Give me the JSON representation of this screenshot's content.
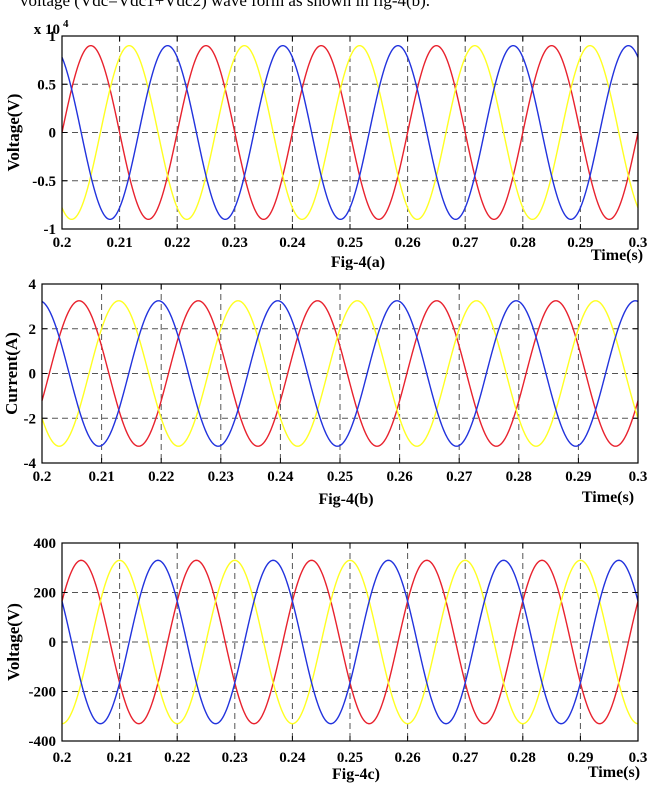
{
  "page": {
    "top_text": "voltage (Vdc=Vdc1+Vdc2) wave form as shown in fig-4(b)."
  },
  "colors": {
    "phase_a": "#e8222e",
    "phase_b": "#ffff22",
    "phase_c": "#2233dd"
  },
  "chart_data": [
    {
      "type": "line",
      "ylabel": "Voltage(V)",
      "caption": "Fig-4(a)",
      "xlabel": "Time(s)",
      "exponent_label": "x 10",
      "exponent_power": "4",
      "xlim": [
        0.2,
        0.3
      ],
      "ylim": [
        -1,
        1
      ],
      "xticks": [
        "0.2",
        "0.21",
        "0.22",
        "0.23",
        "0.24",
        "0.25",
        "0.26",
        "0.27",
        "0.28",
        "0.29",
        "0.3"
      ],
      "yticks": [
        "1",
        "0.5",
        "0",
        "-0.5",
        "-1"
      ],
      "ytick_values": [
        1,
        0.5,
        0,
        -0.5,
        -1
      ],
      "grid": true,
      "frequency_hz": 50,
      "series": [
        {
          "color": "phase_a",
          "amplitude": 0.9,
          "phase_deg": 0
        },
        {
          "color": "phase_b",
          "amplitude": 0.9,
          "phase_deg": -120
        },
        {
          "color": "phase_c",
          "amplitude": 0.9,
          "phase_deg": 120
        }
      ]
    },
    {
      "type": "line",
      "ylabel": "Current(A)",
      "caption": "Fig-4(b)",
      "xlabel": "Time(s)",
      "xlim": [
        0.2,
        0.3
      ],
      "ylim": [
        -4,
        4
      ],
      "xticks": [
        "0.2",
        "0.21",
        "0.22",
        "0.23",
        "0.24",
        "0.25",
        "0.26",
        "0.27",
        "0.28",
        "0.29",
        "0.3"
      ],
      "yticks": [
        "4",
        "2",
        "0",
        "-2",
        "-4"
      ],
      "ytick_values": [
        4,
        2,
        0,
        -2,
        -4
      ],
      "grid": true,
      "frequency_hz": 50,
      "series": [
        {
          "color": "phase_a",
          "amplitude": 3.25,
          "phase_deg": -22
        },
        {
          "color": "phase_b",
          "amplitude": 3.25,
          "phase_deg": -142
        },
        {
          "color": "phase_c",
          "amplitude": 3.25,
          "phase_deg": 98
        }
      ]
    },
    {
      "type": "line",
      "ylabel": "Voltage(V)",
      "caption": "Fig-4c)",
      "xlabel": "Time(s)",
      "xlim": [
        0.2,
        0.3
      ],
      "ylim": [
        -400,
        400
      ],
      "xticks": [
        "0.2",
        "0.21",
        "0.22",
        "0.23",
        "0.24",
        "0.25",
        "0.26",
        "0.27",
        "0.28",
        "0.29",
        "0.3"
      ],
      "yticks": [
        "400",
        "200",
        "0",
        "-200",
        "-400"
      ],
      "ytick_values": [
        400,
        200,
        0,
        -200,
        -400
      ],
      "grid": true,
      "frequency_hz": 50,
      "series": [
        {
          "color": "phase_a",
          "amplitude": 330,
          "phase_deg": 30
        },
        {
          "color": "phase_b",
          "amplitude": 330,
          "phase_deg": -90
        },
        {
          "color": "phase_c",
          "amplitude": 330,
          "phase_deg": 150
        }
      ]
    }
  ]
}
